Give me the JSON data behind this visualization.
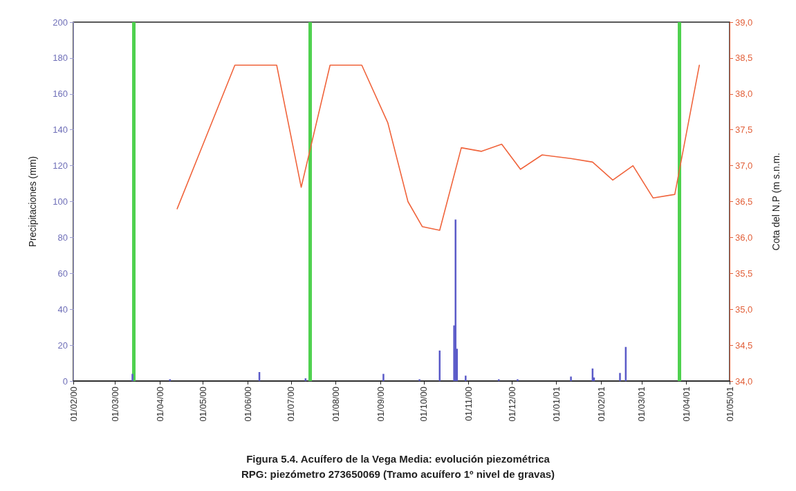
{
  "chart_data": {
    "type": "bar",
    "title": "Figura 5.4. Acuífero de la Vega Media: evolución piezométrica",
    "subtitle": "RPG: piezómetro 273650069 (Tramo acuífero 1º nivel de gravas)",
    "ylabel": "Precipitaciones (mm)",
    "y2label": "Cota del N.P (m s.n.m.",
    "series": [
      {
        "axis": "y",
        "color": "#5a5ac8",
        "x": [
          "2000-03-13",
          "2000-04-08",
          "2000-06-09",
          "2000-07-11",
          "2000-09-03",
          "2000-09-28",
          "2000-10-12",
          "2000-10-22",
          "2000-10-23",
          "2000-10-24",
          "2000-10-30",
          "2000-11-22",
          "2000-12-05",
          "2001-01-11",
          "2001-01-26",
          "2001-01-27",
          "2001-02-14",
          "2001-02-18"
        ],
        "values": [
          4,
          1,
          5,
          1.5,
          4,
          1,
          17,
          31,
          90,
          18,
          3,
          1,
          1,
          2.5,
          7,
          2,
          4.5,
          19
        ]
      },
      {
        "type": "line",
        "axis": "y2",
        "color": "#f0643c",
        "x": [
          "2000-04-13",
          "2000-05-23",
          "2000-06-21",
          "2000-07-08",
          "2000-07-28",
          "2000-08-19",
          "2000-09-06",
          "2000-09-20",
          "2000-09-30",
          "2000-10-12",
          "2000-10-27",
          "2000-11-10",
          "2000-11-24",
          "2000-12-07",
          "2000-12-22",
          "2001-01-11",
          "2001-01-26",
          "2001-02-09",
          "2001-02-23",
          "2001-03-09",
          "2001-03-24",
          "2001-04-10"
        ],
        "values": [
          36.4,
          38.4,
          38.4,
          36.7,
          38.4,
          38.4,
          37.6,
          36.5,
          36.15,
          36.1,
          37.25,
          37.2,
          37.3,
          36.95,
          37.15,
          37.1,
          37.05,
          36.8,
          37.0,
          36.55,
          36.6,
          38.4
        ]
      }
    ],
    "xlim": [
      "2000-02-01",
      "2001-05-01"
    ],
    "xticks": [
      {
        "value": "2000-02-01",
        "label": "01/02/00"
      },
      {
        "value": "2000-03-01",
        "label": "01/03/00"
      },
      {
        "value": "2000-04-01",
        "label": "01/04/00"
      },
      {
        "value": "2000-05-01",
        "label": "01/05/00"
      },
      {
        "value": "2000-06-01",
        "label": "01/06/00"
      },
      {
        "value": "2000-07-01",
        "label": "01/07/00"
      },
      {
        "value": "2000-08-01",
        "label": "01/08/00"
      },
      {
        "value": "2000-09-01",
        "label": "01/09/00"
      },
      {
        "value": "2000-10-01",
        "label": "01/10/00"
      },
      {
        "value": "2000-11-01",
        "label": "01/11/00"
      },
      {
        "value": "2000-12-01",
        "label": "01/12/00"
      },
      {
        "value": "2001-01-01",
        "label": "01/01/01"
      },
      {
        "value": "2001-02-01",
        "label": "01/02/01"
      },
      {
        "value": "2001-03-01",
        "label": "01/03/01"
      },
      {
        "value": "2001-04-01",
        "label": "01/04/01"
      },
      {
        "value": "2001-05-01",
        "label": "01/05/01"
      }
    ],
    "ylim": [
      0,
      200
    ],
    "yticks": [
      0,
      20,
      40,
      60,
      80,
      100,
      120,
      140,
      160,
      180,
      200
    ],
    "y2lim": [
      34,
      39
    ],
    "y2ticks": [
      {
        "value": 34,
        "label": "34,0"
      },
      {
        "value": 34.5,
        "label": "34,5"
      },
      {
        "value": 35,
        "label": "35,0"
      },
      {
        "value": 35.5,
        "label": "35,5"
      },
      {
        "value": 36,
        "label": "36,0"
      },
      {
        "value": 36.5,
        "label": "36,5"
      },
      {
        "value": 37,
        "label": "37,0"
      },
      {
        "value": 37.5,
        "label": "37,5"
      },
      {
        "value": 38,
        "label": "38,0"
      },
      {
        "value": 38.5,
        "label": "38,5"
      },
      {
        "value": 39,
        "label": "39,0"
      }
    ],
    "ref_lines": [
      {
        "axis": "x",
        "value": "2000-03-14",
        "color": "#4fd14f"
      },
      {
        "axis": "x",
        "value": "2000-07-14",
        "color": "#4fd14f"
      },
      {
        "axis": "x",
        "value": "2001-03-27",
        "color": "#4fd14f"
      }
    ],
    "grid": false,
    "marker": "none",
    "line_style": "solid"
  }
}
